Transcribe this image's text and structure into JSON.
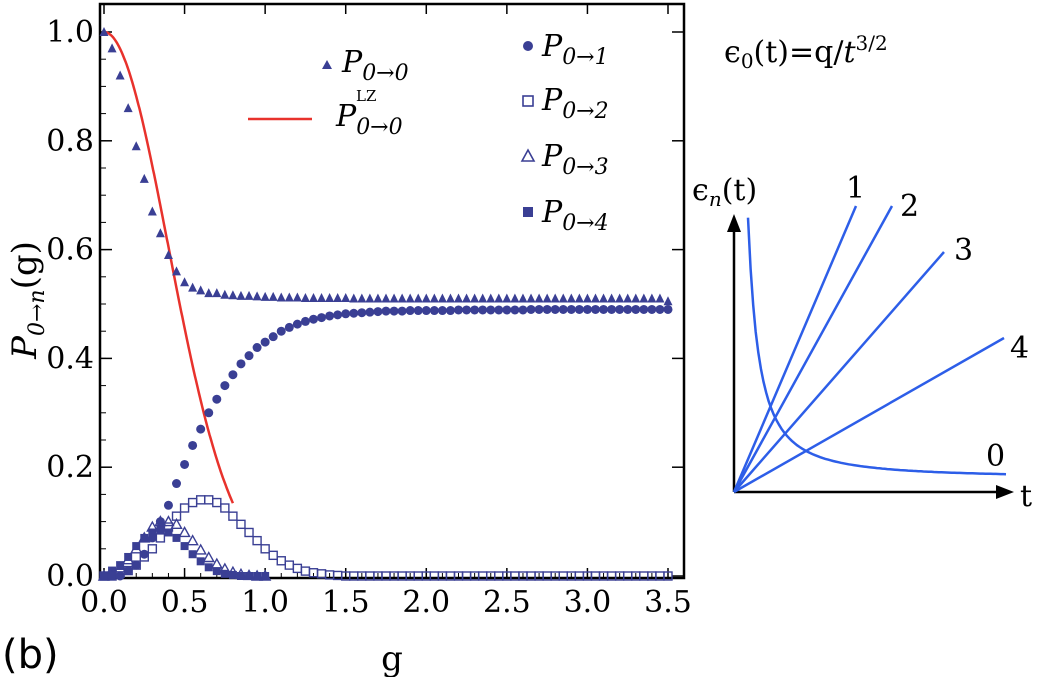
{
  "panel_tag": "(b)",
  "chart_data": [
    {
      "type": "scatter",
      "xlabel": "g",
      "ylabel_main": "P",
      "ylabel_sub": "0→n",
      "ylabel_tail": "(g)",
      "xlim": [
        0,
        3.5
      ],
      "ylim": [
        0,
        1.0
      ],
      "x_ticks": [
        "0.0",
        "0.5",
        "1.0",
        "1.5",
        "2.0",
        "2.5",
        "3.0",
        "3.5"
      ],
      "y_ticks": [
        "0.0",
        "0.2",
        "0.4",
        "0.6",
        "0.8",
        "1.0"
      ],
      "legend_left": [
        {
          "main": "P",
          "sub": "0→0",
          "sup": "",
          "marker": "triangle"
        },
        {
          "main": "P",
          "sub": "0→0",
          "sup": "LZ",
          "marker": "line"
        }
      ],
      "legend_right": [
        {
          "main": "P",
          "sub": "0→1",
          "marker": "circle"
        },
        {
          "main": "P",
          "sub": "0→2",
          "marker": "open-square"
        },
        {
          "main": "P",
          "sub": "0→3",
          "marker": "open-triangle"
        },
        {
          "main": "P",
          "sub": "0→4",
          "marker": "square"
        }
      ],
      "colors": {
        "markers": "#3a3f94",
        "lz_line": "#e8322c"
      },
      "series": [
        {
          "key": "P00",
          "x_start": 0.0,
          "x_end": 3.5,
          "x_step": 0.05,
          "values": [
            1.0,
            0.97,
            0.92,
            0.86,
            0.79,
            0.73,
            0.67,
            0.63,
            0.59,
            0.56,
            0.54,
            0.53,
            0.525,
            0.52,
            0.52,
            0.517,
            0.516,
            0.515,
            0.515,
            0.514,
            0.513,
            0.513,
            0.512,
            0.512,
            0.512,
            0.511,
            0.511,
            0.511,
            0.511,
            0.511,
            0.511,
            0.51,
            0.51,
            0.51,
            0.51,
            0.51,
            0.51,
            0.51,
            0.51,
            0.51,
            0.51,
            0.51,
            0.51,
            0.51,
            0.51,
            0.51,
            0.51,
            0.51,
            0.51,
            0.51,
            0.51,
            0.51,
            0.51,
            0.51,
            0.51,
            0.51,
            0.51,
            0.51,
            0.51,
            0.51,
            0.51,
            0.51,
            0.51,
            0.51,
            0.51,
            0.51,
            0.51,
            0.51,
            0.51,
            0.51,
            0.505
          ]
        },
        {
          "key": "P01",
          "x_start": 0.0,
          "x_end": 3.5,
          "x_step": 0.05,
          "values": [
            0.0,
            0.0,
            0.0,
            0.01,
            0.02,
            0.04,
            0.07,
            0.1,
            0.13,
            0.17,
            0.205,
            0.24,
            0.27,
            0.3,
            0.325,
            0.35,
            0.37,
            0.39,
            0.405,
            0.42,
            0.43,
            0.44,
            0.45,
            0.457,
            0.463,
            0.468,
            0.472,
            0.475,
            0.478,
            0.48,
            0.482,
            0.483,
            0.484,
            0.485,
            0.486,
            0.487,
            0.487,
            0.487,
            0.488,
            0.488,
            0.488,
            0.488,
            0.488,
            0.488,
            0.489,
            0.489,
            0.489,
            0.489,
            0.489,
            0.489,
            0.489,
            0.489,
            0.489,
            0.49,
            0.49,
            0.49,
            0.49,
            0.49,
            0.49,
            0.49,
            0.49,
            0.49,
            0.49,
            0.49,
            0.49,
            0.49,
            0.49,
            0.49,
            0.49,
            0.49,
            0.49
          ]
        },
        {
          "key": "P02",
          "x_start": 0.0,
          "x_end": 3.5,
          "x_step": 0.05,
          "values": [
            0.0,
            0.0,
            0.005,
            0.01,
            0.02,
            0.035,
            0.05,
            0.07,
            0.09,
            0.11,
            0.125,
            0.135,
            0.14,
            0.14,
            0.135,
            0.125,
            0.11,
            0.095,
            0.08,
            0.065,
            0.05,
            0.038,
            0.028,
            0.02,
            0.014,
            0.009,
            0.006,
            0.004,
            0.002,
            0.001,
            0.0,
            0.0,
            0.0,
            0.0,
            0.0,
            0.0,
            0.0,
            0.0,
            0.0,
            0.0,
            0.0,
            0.0,
            0.0,
            0.0,
            0.0,
            0.0,
            0.0,
            0.0,
            0.0,
            0.0,
            0.0,
            0.0,
            0.0,
            0.0,
            0.0,
            0.0,
            0.0,
            0.0,
            0.0,
            0.0,
            0.0,
            0.0,
            0.0,
            0.0,
            0.0,
            0.0,
            0.0,
            0.0,
            0.0,
            0.0,
            0.0
          ]
        },
        {
          "key": "P03",
          "x_start": 0.0,
          "x_end": 1.0,
          "x_step": 0.05,
          "values": [
            0.0,
            0.005,
            0.015,
            0.03,
            0.05,
            0.07,
            0.09,
            0.1,
            0.1,
            0.095,
            0.08,
            0.065,
            0.048,
            0.034,
            0.022,
            0.013,
            0.007,
            0.003,
            0.001,
            0.0,
            0.0
          ]
        },
        {
          "key": "P04",
          "x_start": 0.0,
          "x_end": 1.0,
          "x_step": 0.05,
          "values": [
            0.0,
            0.01,
            0.02,
            0.035,
            0.055,
            0.07,
            0.08,
            0.085,
            0.08,
            0.07,
            0.055,
            0.04,
            0.027,
            0.016,
            0.009,
            0.004,
            0.002,
            0.0,
            0.0,
            0.0,
            0.0
          ]
        },
        {
          "key": "LZ",
          "formula": "exp(-pi*g^2)",
          "x_start": 0.0,
          "x_end": 0.8
        }
      ]
    },
    {
      "type": "line",
      "title": "ϵ₀(t)=q/t^{3/2}",
      "title_main": "ϵ",
      "title_sub": "0",
      "title_mid": "(t)=q/",
      "title_t": "t",
      "title_sup": "3/2",
      "ylabel_main": "ϵ",
      "ylabel_sub": "n",
      "ylabel_tail": "(t)",
      "xlabel": "t",
      "line_labels": [
        "1",
        "2",
        "3",
        "4",
        "0"
      ],
      "slopes": {
        "1": 5.2,
        "2": 3.5,
        "3": 2.5,
        "4": 1.45
      },
      "color": "#2d5ee8"
    }
  ]
}
